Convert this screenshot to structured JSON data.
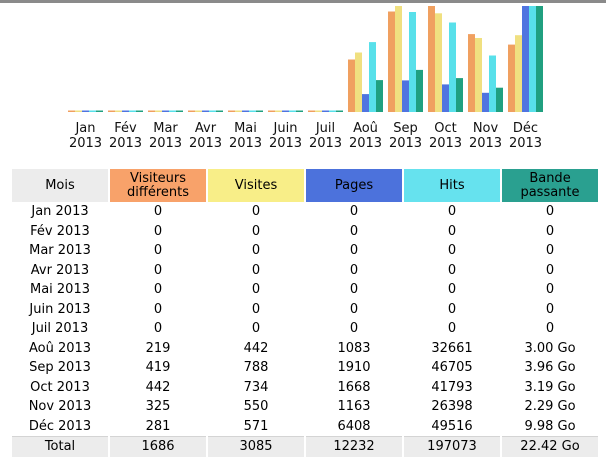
{
  "chart_data": {
    "type": "bar",
    "categories": [
      "Jan 2013",
      "Fév 2013",
      "Mar 2013",
      "Avr 2013",
      "Mai 2013",
      "Juin 2013",
      "Juil 2013",
      "Aoû 2013",
      "Sep 2013",
      "Oct 2013",
      "Nov 2013",
      "Déc 2013"
    ],
    "category_lines": [
      [
        "Jan",
        "2013"
      ],
      [
        "Fév",
        "2013"
      ],
      [
        "Mar",
        "2013"
      ],
      [
        "Avr",
        "2013"
      ],
      [
        "Mai",
        "2013"
      ],
      [
        "Juin",
        "2013"
      ],
      [
        "Juil",
        "2013"
      ],
      [
        "Aoû",
        "2013"
      ],
      [
        "Sep",
        "2013"
      ],
      [
        "Oct",
        "2013"
      ],
      [
        "Nov",
        "2013"
      ],
      [
        "Déc",
        "2013"
      ]
    ],
    "series": [
      {
        "name": "Visiteurs différents",
        "color": "#f0a060",
        "values": [
          0,
          0,
          0,
          0,
          0,
          0,
          0,
          219,
          419,
          442,
          325,
          281
        ]
      },
      {
        "name": "Visites",
        "color": "#f0e080",
        "values": [
          0,
          0,
          0,
          0,
          0,
          0,
          0,
          442,
          788,
          734,
          550,
          571
        ]
      },
      {
        "name": "Pages",
        "color": "#4f74e0",
        "values": [
          0,
          0,
          0,
          0,
          0,
          0,
          0,
          1083,
          1910,
          1668,
          1163,
          6408
        ]
      },
      {
        "name": "Hits",
        "color": "#58e0ea",
        "values": [
          0,
          0,
          0,
          0,
          0,
          0,
          0,
          32661,
          46705,
          41793,
          26398,
          49516
        ]
      },
      {
        "name": "Bande passante",
        "color": "#20a080",
        "values": [
          0,
          0,
          0,
          0,
          0,
          0,
          0,
          3.0,
          3.96,
          3.19,
          2.29,
          9.98
        ]
      }
    ]
  },
  "table": {
    "headers": [
      "Mois",
      "Visiteurs différents",
      "Visites",
      "Pages",
      "Hits",
      "Bande passante"
    ],
    "header_colors": [
      "#ececec",
      "#f8a26a",
      "#f8ee88",
      "#4c72dc",
      "#66e2ee",
      "#2aa090"
    ],
    "rows": [
      [
        "Jan 2013",
        "0",
        "0",
        "0",
        "0",
        "0"
      ],
      [
        "Fév 2013",
        "0",
        "0",
        "0",
        "0",
        "0"
      ],
      [
        "Mar 2013",
        "0",
        "0",
        "0",
        "0",
        "0"
      ],
      [
        "Avr 2013",
        "0",
        "0",
        "0",
        "0",
        "0"
      ],
      [
        "Mai 2013",
        "0",
        "0",
        "0",
        "0",
        "0"
      ],
      [
        "Juin 2013",
        "0",
        "0",
        "0",
        "0",
        "0"
      ],
      [
        "Juil 2013",
        "0",
        "0",
        "0",
        "0",
        "0"
      ],
      [
        "Aoû 2013",
        "219",
        "442",
        "1083",
        "32661",
        "3.00 Go"
      ],
      [
        "Sep 2013",
        "419",
        "788",
        "1910",
        "46705",
        "3.96 Go"
      ],
      [
        "Oct 2013",
        "442",
        "734",
        "1668",
        "41793",
        "3.19 Go"
      ],
      [
        "Nov 2013",
        "325",
        "550",
        "1163",
        "26398",
        "2.29 Go"
      ],
      [
        "Déc 2013",
        "281",
        "571",
        "6408",
        "49516",
        "9.98 Go"
      ]
    ],
    "total": [
      "Total",
      "1686",
      "3085",
      "12232",
      "197073",
      "22.42 Go"
    ]
  }
}
